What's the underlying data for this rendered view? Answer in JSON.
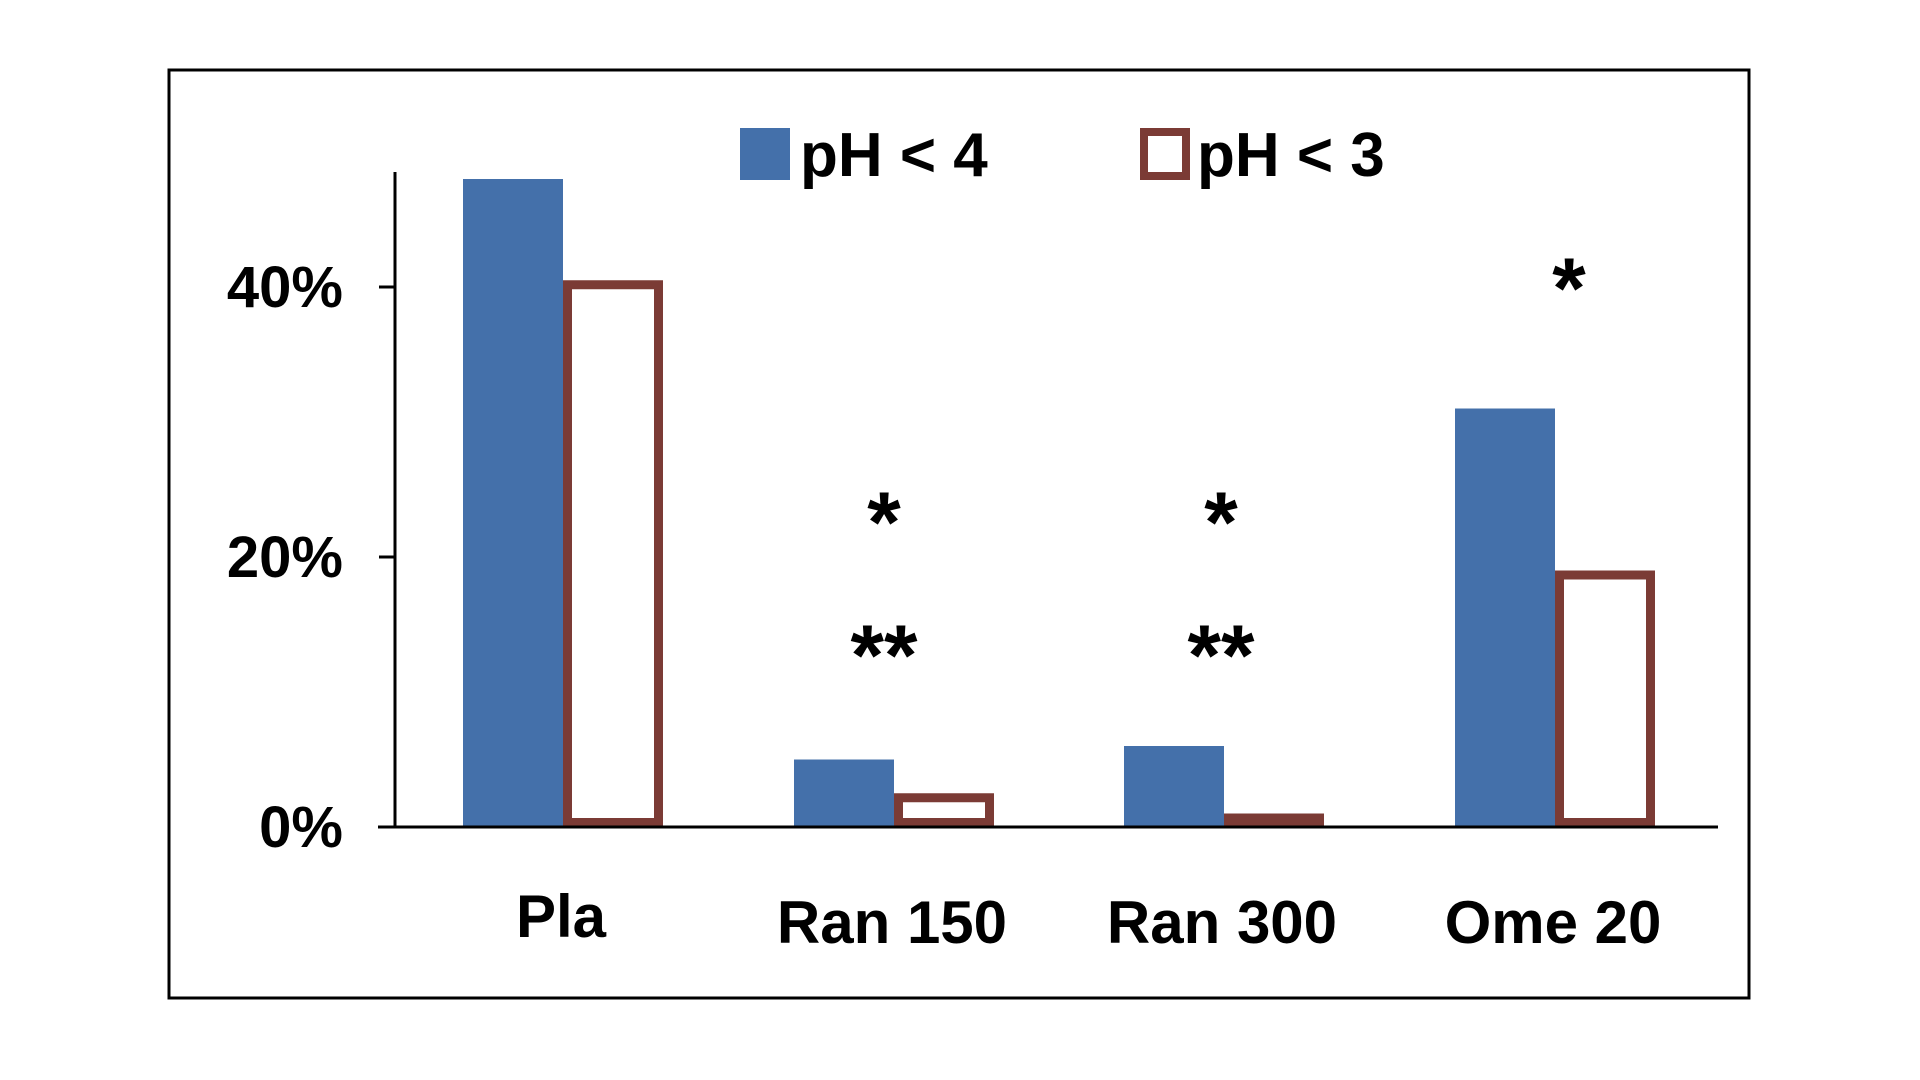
{
  "chart_data": {
    "type": "bar",
    "categories": [
      "Pla",
      "Ran 150",
      "Ran 300",
      "Ome 20"
    ],
    "series": [
      {
        "name": "pH < 4",
        "values": [
          48,
          5,
          6,
          31
        ],
        "color": "#4470AA",
        "style": "filled"
      },
      {
        "name": "pH < 3",
        "values": [
          40.5,
          2.5,
          1,
          19
        ],
        "color": "#7B3B35",
        "style": "outline"
      }
    ],
    "ylim": [
      0,
      50
    ],
    "yticks": [
      {
        "value": 0,
        "label": "0%"
      },
      {
        "value": 20,
        "label": "20%"
      },
      {
        "value": 40,
        "label": "40%"
      }
    ],
    "annotations": [
      {
        "category": "Ran 150",
        "lines": [
          "*",
          "**"
        ]
      },
      {
        "category": "Ran 300",
        "lines": [
          "*",
          "**"
        ]
      },
      {
        "category": "Ome 20",
        "lines": [
          "*"
        ]
      }
    ],
    "legend_position": "top",
    "grid": false
  }
}
